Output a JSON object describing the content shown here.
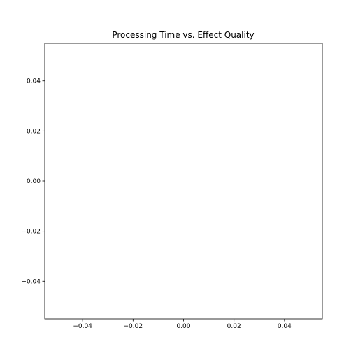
{
  "chart_data": {
    "type": "scatter",
    "title": "Processing Time vs. Effect Quality",
    "xlabel": "",
    "ylabel": "",
    "xlim": [
      -0.055,
      0.055
    ],
    "ylim": [
      -0.055,
      0.055
    ],
    "x_ticks": [
      -0.04,
      -0.02,
      0.0,
      0.02,
      0.04
    ],
    "x_tick_labels": [
      "−0.04",
      "−0.02",
      "0.00",
      "0.02",
      "0.04"
    ],
    "y_ticks": [
      -0.04,
      -0.02,
      0.0,
      0.02,
      0.04
    ],
    "y_tick_labels": [
      "−0.04",
      "−0.02",
      "0.00",
      "0.02",
      "0.04"
    ],
    "grid": false,
    "series": [
      {
        "x": [],
        "y": []
      }
    ]
  }
}
